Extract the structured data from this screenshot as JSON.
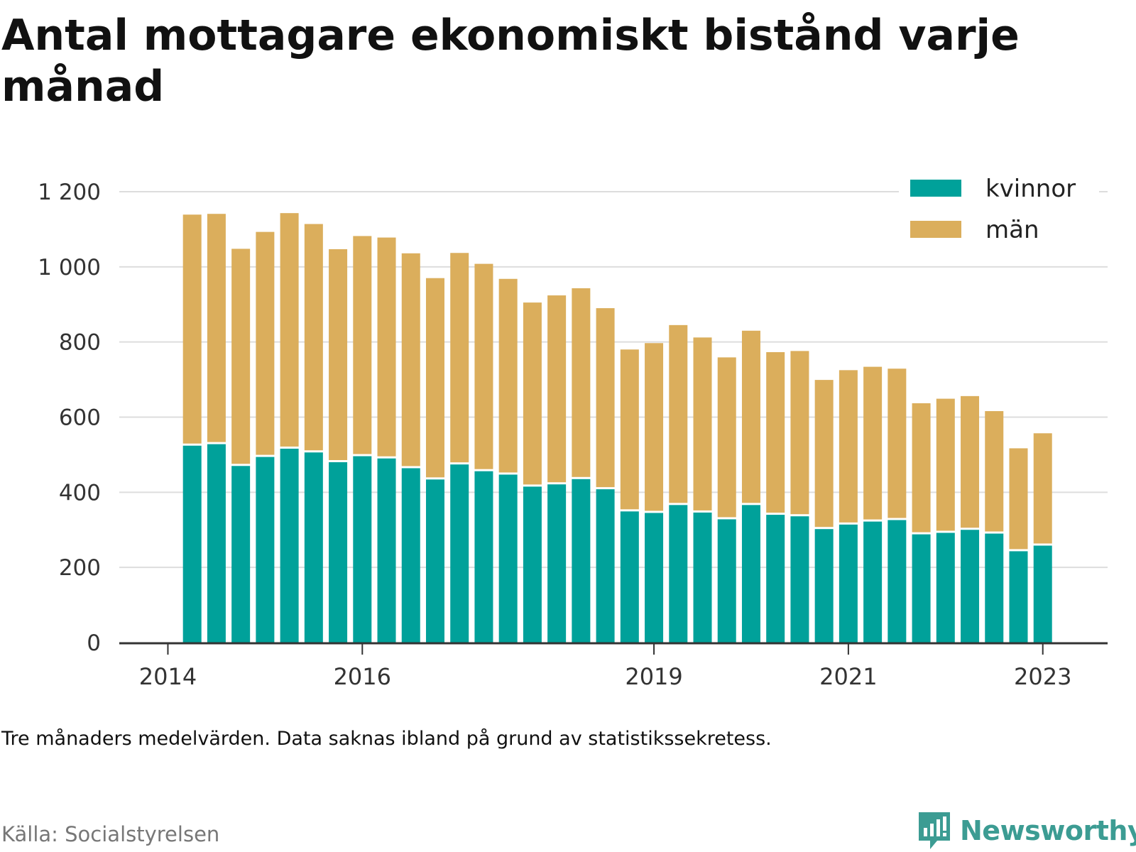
{
  "title": "Antal mottagare ekonomiskt bistånd varje månad",
  "note": "Tre månaders medelvärden. Data saknas ibland på grund av statistikssekretess.",
  "source": "Källa: Socialstyrelsen",
  "brand": "Newsworthy",
  "colors": {
    "kvinnor": "#00a19a",
    "man": "#dbae5c",
    "grid": "#dddddd",
    "axis": "#333333",
    "brand": "#3c9c93"
  },
  "chart_data": {
    "type": "bar",
    "stacked": true,
    "title": "Antal mottagare ekonomiskt bistånd varje månad",
    "xlabel": "",
    "ylabel": "",
    "ylim": [
      0,
      1200
    ],
    "yticks": [
      {
        "value": 0,
        "label": "0"
      },
      {
        "value": 200,
        "label": "200"
      },
      {
        "value": 400,
        "label": "400"
      },
      {
        "value": 600,
        "label": "600"
      },
      {
        "value": 800,
        "label": "800"
      },
      {
        "value": 1000,
        "label": "1 000"
      },
      {
        "value": 1200,
        "label": "1 200"
      }
    ],
    "xticks": [
      {
        "date": "2014-01",
        "label": "2014"
      },
      {
        "date": "2016-01",
        "label": "2016"
      },
      {
        "date": "2019-01",
        "label": "2019"
      },
      {
        "date": "2021-01",
        "label": "2021"
      },
      {
        "date": "2023-01",
        "label": "2023"
      }
    ],
    "xrange": [
      "2013-07",
      "2023-09"
    ],
    "legend_position": "top-right",
    "grid": true,
    "categories": [
      "2014-04",
      "2014-07",
      "2014-10",
      "2015-01",
      "2015-04",
      "2015-07",
      "2015-10",
      "2016-01",
      "2016-04",
      "2016-07",
      "2016-10",
      "2017-01",
      "2017-04",
      "2017-07",
      "2017-10",
      "2018-01",
      "2018-04",
      "2018-07",
      "2018-10",
      "2019-01",
      "2019-04",
      "2019-07",
      "2019-10",
      "2020-01",
      "2020-04",
      "2020-07",
      "2020-10",
      "2021-01",
      "2021-04",
      "2021-07",
      "2021-10",
      "2022-01",
      "2022-04",
      "2022-07",
      "2022-10",
      "2023-01",
      "2023-04"
    ],
    "series": [
      {
        "name": "kvinnor",
        "values": [
          524,
          528,
          470,
          494,
          516,
          506,
          480,
          496,
          490,
          464,
          434,
          474,
          456,
          447,
          415,
          421,
          435,
          408,
          349,
          345,
          366,
          346,
          328,
          366,
          340,
          336,
          302,
          314,
          322,
          326,
          288,
          292,
          300,
          290,
          243,
          258,
          0
        ]
      },
      {
        "name": "män",
        "values": [
          615,
          613,
          578,
          599,
          627,
          608,
          567,
          586,
          588,
          572,
          536,
          563,
          552,
          521,
          490,
          503,
          508,
          482,
          431,
          452,
          479,
          466,
          431,
          464,
          433,
          440,
          397,
          411,
          412,
          403,
          349,
          357,
          356,
          326,
          274,
          299,
          0
        ]
      }
    ]
  }
}
